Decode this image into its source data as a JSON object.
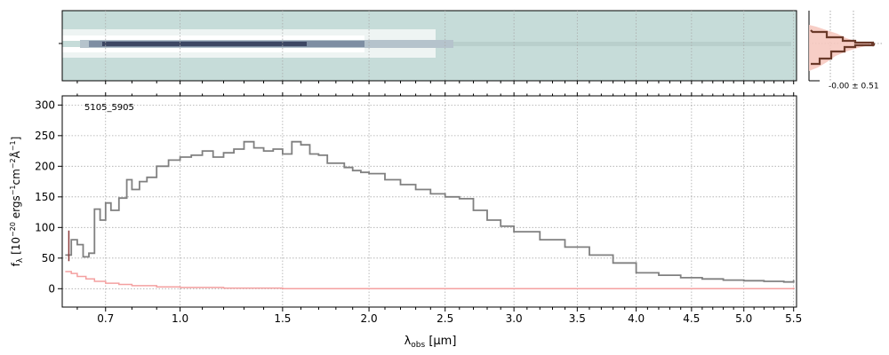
{
  "chart_data": [
    {
      "type": "heatmap",
      "panel": "2d-spectrum",
      "description_colors": {
        "background": "#c6dcd9",
        "trace_dark": "#2d3550",
        "trace_light": "#ffffff"
      },
      "xaxis": "shared with spectrum panel",
      "yticks": [
        ""
      ]
    },
    {
      "type": "line",
      "panel": "profile",
      "annotation": "-0.00 ± 0.51",
      "colors": {
        "line": "#6b3a2a",
        "fill": "#f6c9c0"
      }
    },
    {
      "type": "line",
      "panel": "1d-spectrum",
      "annotation": "5105_5905",
      "xlabel_main": "λ",
      "xlabel_sub": "obs",
      "xlabel_unit": " [μm]",
      "ylabel": "f_λ [10^-20 ergs^-1 cm^-2 Å^-1]",
      "ylim": [
        -30,
        315
      ],
      "xlim": [
        0.55,
        5.53
      ],
      "xscale": "sqrt",
      "xtick_values": [
        0.7,
        1.0,
        1.5,
        2.0,
        2.5,
        3.0,
        3.5,
        4.0,
        4.5,
        5.0,
        5.5
      ],
      "xtick_labels": [
        "0.7",
        "1.0",
        "1.5",
        "2.0",
        "2.5",
        "3.0",
        "3.5",
        "4.0",
        "4.5",
        "5.0",
        "5.5"
      ],
      "ytick_values": [
        0,
        50,
        100,
        150,
        200,
        250,
        300
      ],
      "ytick_labels": [
        "0",
        "50",
        "100",
        "150",
        "200",
        "250",
        "300"
      ],
      "grid": true,
      "series": [
        {
          "color": "#808080",
          "x": [
            0.56,
            0.58,
            0.6,
            0.62,
            0.64,
            0.66,
            0.68,
            0.7,
            0.72,
            0.75,
            0.78,
            0.8,
            0.83,
            0.86,
            0.9,
            0.95,
            1.0,
            1.05,
            1.1,
            1.15,
            1.2,
            1.25,
            1.3,
            1.35,
            1.4,
            1.45,
            1.5,
            1.55,
            1.6,
            1.65,
            1.7,
            1.75,
            1.8,
            1.85,
            1.9,
            1.95,
            2.0,
            2.1,
            2.2,
            2.3,
            2.4,
            2.5,
            2.6,
            2.7,
            2.8,
            2.9,
            3.0,
            3.2,
            3.4,
            3.6,
            3.8,
            4.0,
            4.2,
            4.4,
            4.6,
            4.8,
            5.0,
            5.2,
            5.4,
            5.5
          ],
          "y": [
            55,
            80,
            72,
            52,
            58,
            130,
            112,
            140,
            128,
            148,
            178,
            162,
            175,
            182,
            200,
            210,
            215,
            218,
            225,
            215,
            222,
            228,
            240,
            230,
            225,
            228,
            220,
            240,
            235,
            220,
            218,
            205,
            205,
            198,
            193,
            190,
            188,
            178,
            170,
            162,
            155,
            150,
            147,
            128,
            112,
            102,
            93,
            80,
            68,
            55,
            42,
            26,
            22,
            18,
            16,
            14,
            13,
            12,
            11,
            14
          ]
        },
        {
          "color": "#f4a0a0",
          "x": [
            0.56,
            0.58,
            0.6,
            0.63,
            0.66,
            0.7,
            0.75,
            0.8,
            0.9,
            1.0,
            1.2,
            1.5,
            2.0,
            3.0,
            4.0,
            5.0,
            5.5
          ],
          "y": [
            28,
            25,
            20,
            16,
            12,
            9,
            7,
            5,
            3,
            2,
            1,
            0,
            0,
            0,
            0,
            0,
            2
          ]
        }
      ]
    }
  ]
}
